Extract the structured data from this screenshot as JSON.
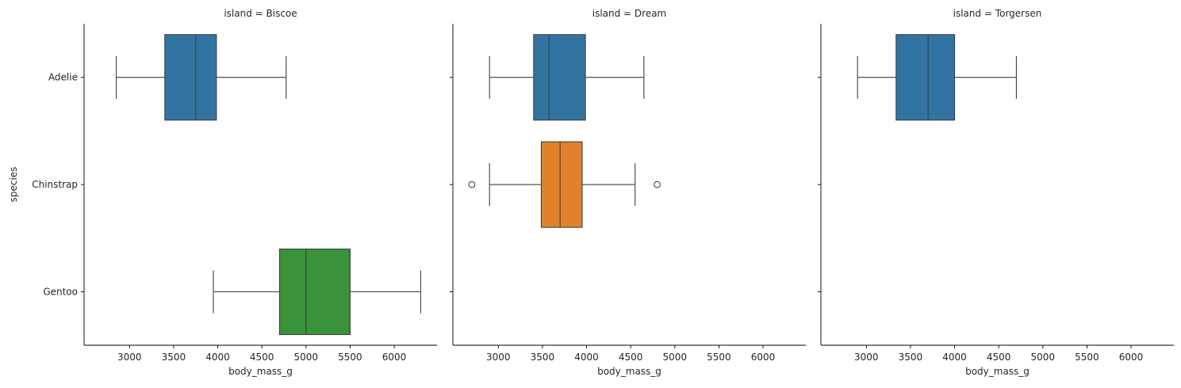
{
  "chart_data": {
    "type": "box",
    "facet_title_template": "island = {}",
    "categories": [
      "Adelie",
      "Chinstrap",
      "Gentoo"
    ],
    "xlabel": "body_mass_g",
    "ylabel": "species",
    "xlim": [
      2485,
      6485
    ],
    "xticks": [
      3000,
      3500,
      4000,
      4500,
      5000,
      5500,
      6000
    ],
    "colors": {
      "Adelie": "#3274a1",
      "Chinstrap": "#e1812c",
      "Gentoo": "#3a923a"
    },
    "legend": "none",
    "grid": false,
    "panels": [
      {
        "title": "island = Biscoe",
        "boxes": [
          {
            "species": "Adelie",
            "whisker_low": 2850,
            "q1": 3400,
            "median": 3750,
            "q3": 3985,
            "whisker_high": 4775,
            "outliers": []
          },
          {
            "species": "Gentoo",
            "whisker_low": 3950,
            "q1": 4700,
            "median": 5000,
            "q3": 5500,
            "whisker_high": 6300,
            "outliers": []
          }
        ]
      },
      {
        "title": "island = Dream",
        "boxes": [
          {
            "species": "Adelie",
            "whisker_low": 2900,
            "q1": 3400,
            "median": 3575,
            "q3": 3987,
            "whisker_high": 4650,
            "outliers": []
          },
          {
            "species": "Chinstrap",
            "whisker_low": 2900,
            "q1": 3487,
            "median": 3700,
            "q3": 3950,
            "whisker_high": 4550,
            "outliers": [
              2700,
              4800
            ]
          }
        ]
      },
      {
        "title": "island = Torgersen",
        "boxes": [
          {
            "species": "Adelie",
            "whisker_low": 2900,
            "q1": 3337,
            "median": 3700,
            "q3": 4000,
            "whisker_high": 4700,
            "outliers": []
          }
        ]
      }
    ]
  }
}
